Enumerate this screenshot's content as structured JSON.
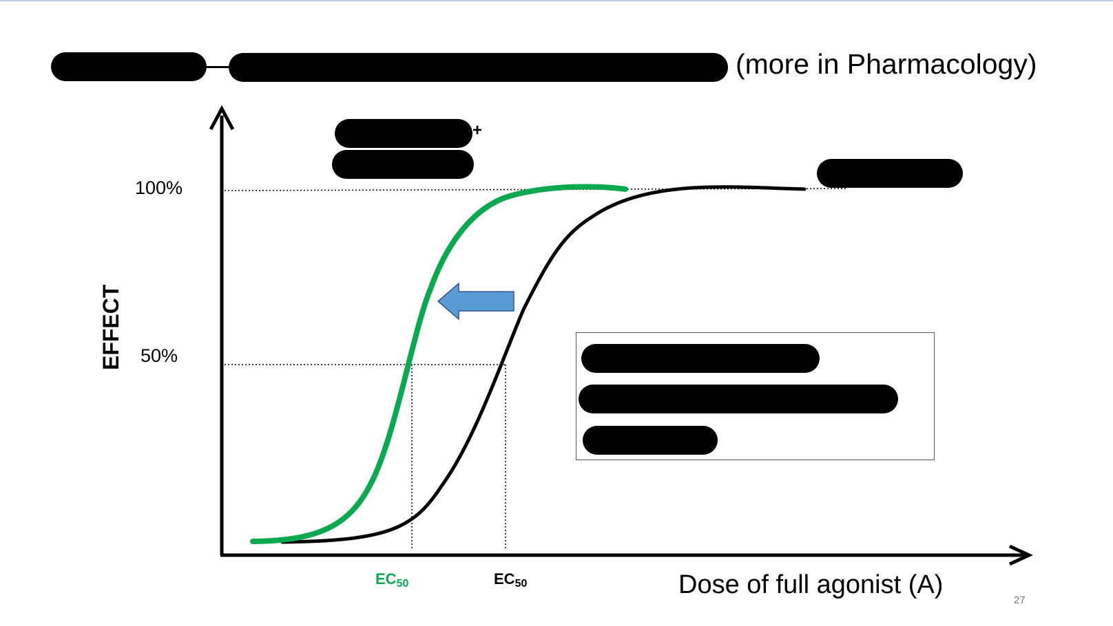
{
  "slide": {
    "title_suffix": "(more in Pharmacology)",
    "page_number": "27"
  },
  "chart_data": {
    "type": "line",
    "xlabel": "Dose of full agonist (A)",
    "ylabel": "EFFECT",
    "y_ticks": [
      "100%",
      "50%"
    ],
    "series": [
      {
        "color": "#0aa84f",
        "ec50_label": "EC",
        "ec50_sub": "50"
      },
      {
        "color": "#000000",
        "ec50_label": "EC",
        "ec50_sub": "50"
      }
    ],
    "shift_arrow": {
      "direction": "left",
      "color": "#5b9bd5"
    }
  }
}
